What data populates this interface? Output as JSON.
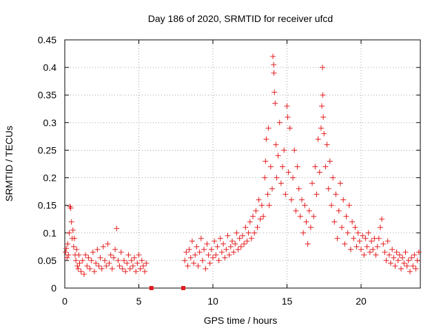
{
  "chart_data": {
    "type": "scatter",
    "title": "Day 186 of 2020, SRMTID for receiver ufcd",
    "xlabel": "GPS time / hours",
    "ylabel": "SRMTID / TECUs",
    "xlim": [
      0,
      24
    ],
    "ylim": [
      0,
      0.45
    ],
    "xticks": [
      0,
      5,
      10,
      15,
      20
    ],
    "xtick_labels": [
      "0",
      "5",
      "10",
      "15",
      "20"
    ],
    "yticks": [
      0,
      0.05,
      0.1,
      0.15,
      0.2,
      0.25,
      0.3,
      0.35,
      0.4,
      0.45
    ],
    "ytick_labels": [
      "0",
      "0.05",
      "0.1",
      "0.15",
      "0.2",
      "0.25",
      "0.3",
      "0.35",
      "0.4",
      "0.45"
    ],
    "grid": true,
    "series": [
      {
        "name": "SRMTID",
        "marker": "plus",
        "color": "#e41a1c",
        "points": [
          [
            0.05,
            0.065
          ],
          [
            0.1,
            0.072
          ],
          [
            0.15,
            0.055
          ],
          [
            0.2,
            0.08
          ],
          [
            0.25,
            0.06
          ],
          [
            0.3,
            0.1
          ],
          [
            0.35,
            0.148
          ],
          [
            0.4,
            0.145
          ],
          [
            0.45,
            0.12
          ],
          [
            0.5,
            0.09
          ],
          [
            0.55,
            0.105
          ],
          [
            0.6,
            0.075
          ],
          [
            0.65,
            0.09
          ],
          [
            0.7,
            0.06
          ],
          [
            0.75,
            0.05
          ],
          [
            0.8,
            0.07
          ],
          [
            0.85,
            0.04
          ],
          [
            0.9,
            0.035
          ],
          [
            0.95,
            0.06
          ],
          [
            1.0,
            0.045
          ],
          [
            1.1,
            0.03
          ],
          [
            1.2,
            0.05
          ],
          [
            1.3,
            0.025
          ],
          [
            1.4,
            0.06
          ],
          [
            1.5,
            0.04
          ],
          [
            1.6,
            0.055
          ],
          [
            1.7,
            0.035
          ],
          [
            1.8,
            0.05
          ],
          [
            1.9,
            0.065
          ],
          [
            2.0,
            0.03
          ],
          [
            2.1,
            0.045
          ],
          [
            2.2,
            0.07
          ],
          [
            2.3,
            0.04
          ],
          [
            2.4,
            0.055
          ],
          [
            2.5,
            0.035
          ],
          [
            2.6,
            0.075
          ],
          [
            2.7,
            0.05
          ],
          [
            2.8,
            0.04
          ],
          [
            2.9,
            0.08
          ],
          [
            3.0,
            0.045
          ],
          [
            3.1,
            0.06
          ],
          [
            3.2,
            0.035
          ],
          [
            3.3,
            0.055
          ],
          [
            3.4,
            0.07
          ],
          [
            3.5,
            0.108
          ],
          [
            3.6,
            0.05
          ],
          [
            3.7,
            0.04
          ],
          [
            3.8,
            0.065
          ],
          [
            3.9,
            0.035
          ],
          [
            4.0,
            0.05
          ],
          [
            4.1,
            0.03
          ],
          [
            4.2,
            0.045
          ],
          [
            4.3,
            0.06
          ],
          [
            4.4,
            0.035
          ],
          [
            4.5,
            0.05
          ],
          [
            4.6,
            0.04
          ],
          [
            4.7,
            0.055
          ],
          [
            4.8,
            0.03
          ],
          [
            4.9,
            0.045
          ],
          [
            5.0,
            0.06
          ],
          [
            5.1,
            0.035
          ],
          [
            5.2,
            0.05
          ],
          [
            5.3,
            0.04
          ],
          [
            5.4,
            0.03
          ],
          [
            5.5,
            0.045
          ],
          [
            8.1,
            0.05
          ],
          [
            8.2,
            0.065
          ],
          [
            8.3,
            0.04
          ],
          [
            8.4,
            0.07
          ],
          [
            8.5,
            0.055
          ],
          [
            8.6,
            0.085
          ],
          [
            8.7,
            0.045
          ],
          [
            8.8,
            0.06
          ],
          [
            8.9,
            0.075
          ],
          [
            9.0,
            0.04
          ],
          [
            9.1,
            0.065
          ],
          [
            9.2,
            0.09
          ],
          [
            9.3,
            0.05
          ],
          [
            9.4,
            0.07
          ],
          [
            9.5,
            0.035
          ],
          [
            9.6,
            0.08
          ],
          [
            9.7,
            0.06
          ],
          [
            9.8,
            0.045
          ],
          [
            9.9,
            0.07
          ],
          [
            10.0,
            0.055
          ],
          [
            10.1,
            0.085
          ],
          [
            10.2,
            0.06
          ],
          [
            10.3,
            0.075
          ],
          [
            10.4,
            0.05
          ],
          [
            10.5,
            0.09
          ],
          [
            10.6,
            0.065
          ],
          [
            10.7,
            0.08
          ],
          [
            10.8,
            0.055
          ],
          [
            10.9,
            0.07
          ],
          [
            11.0,
            0.095
          ],
          [
            11.1,
            0.06
          ],
          [
            11.2,
            0.075
          ],
          [
            11.3,
            0.085
          ],
          [
            11.4,
            0.065
          ],
          [
            11.5,
            0.08
          ],
          [
            11.6,
            0.1
          ],
          [
            11.7,
            0.07
          ],
          [
            11.8,
            0.09
          ],
          [
            11.9,
            0.075
          ],
          [
            12.0,
            0.095
          ],
          [
            12.1,
            0.08
          ],
          [
            12.2,
            0.11
          ],
          [
            12.3,
            0.085
          ],
          [
            12.4,
            0.1
          ],
          [
            12.5,
            0.12
          ],
          [
            12.6,
            0.09
          ],
          [
            12.7,
            0.13
          ],
          [
            12.8,
            0.1
          ],
          [
            12.9,
            0.14
          ],
          [
            13.0,
            0.11
          ],
          [
            13.1,
            0.16
          ],
          [
            13.2,
            0.125
          ],
          [
            13.3,
            0.15
          ],
          [
            13.4,
            0.13
          ],
          [
            13.5,
            0.2
          ],
          [
            13.55,
            0.23
          ],
          [
            13.6,
            0.27
          ],
          [
            13.7,
            0.17
          ],
          [
            13.75,
            0.29
          ],
          [
            13.8,
            0.15
          ],
          [
            13.9,
            0.22
          ],
          [
            14.0,
            0.18
          ],
          [
            14.05,
            0.42
          ],
          [
            14.1,
            0.405
          ],
          [
            14.12,
            0.39
          ],
          [
            14.15,
            0.355
          ],
          [
            14.2,
            0.335
          ],
          [
            14.25,
            0.26
          ],
          [
            14.3,
            0.2
          ],
          [
            14.4,
            0.24
          ],
          [
            14.5,
            0.3
          ],
          [
            14.6,
            0.19
          ],
          [
            14.7,
            0.22
          ],
          [
            14.8,
            0.25
          ],
          [
            14.9,
            0.17
          ],
          [
            15.0,
            0.33
          ],
          [
            15.05,
            0.31
          ],
          [
            15.1,
            0.21
          ],
          [
            15.2,
            0.29
          ],
          [
            15.3,
            0.16
          ],
          [
            15.4,
            0.2
          ],
          [
            15.5,
            0.25
          ],
          [
            15.6,
            0.14
          ],
          [
            15.7,
            0.22
          ],
          [
            15.8,
            0.18
          ],
          [
            15.9,
            0.13
          ],
          [
            16.0,
            0.16
          ],
          [
            16.1,
            0.1
          ],
          [
            16.2,
            0.15
          ],
          [
            16.3,
            0.12
          ],
          [
            16.4,
            0.08
          ],
          [
            16.5,
            0.14
          ],
          [
            16.6,
            0.11
          ],
          [
            16.7,
            0.19
          ],
          [
            16.8,
            0.13
          ],
          [
            16.9,
            0.22
          ],
          [
            17.0,
            0.17
          ],
          [
            17.1,
            0.27
          ],
          [
            17.2,
            0.21
          ],
          [
            17.3,
            0.29
          ],
          [
            17.35,
            0.33
          ],
          [
            17.4,
            0.4
          ],
          [
            17.42,
            0.35
          ],
          [
            17.45,
            0.31
          ],
          [
            17.5,
            0.28
          ],
          [
            17.6,
            0.22
          ],
          [
            17.7,
            0.26
          ],
          [
            17.8,
            0.18
          ],
          [
            17.9,
            0.23
          ],
          [
            18.0,
            0.15
          ],
          [
            18.1,
            0.2
          ],
          [
            18.2,
            0.12
          ],
          [
            18.3,
            0.17
          ],
          [
            18.4,
            0.09
          ],
          [
            18.5,
            0.14
          ],
          [
            18.6,
            0.19
          ],
          [
            18.7,
            0.11
          ],
          [
            18.8,
            0.16
          ],
          [
            18.9,
            0.08
          ],
          [
            19.0,
            0.13
          ],
          [
            19.1,
            0.1
          ],
          [
            19.2,
            0.15
          ],
          [
            19.3,
            0.07
          ],
          [
            19.4,
            0.12
          ],
          [
            19.5,
            0.09
          ],
          [
            19.6,
            0.11
          ],
          [
            19.7,
            0.075
          ],
          [
            19.8,
            0.1
          ],
          [
            19.9,
            0.085
          ],
          [
            20.0,
            0.07
          ],
          [
            20.1,
            0.095
          ],
          [
            20.2,
            0.06
          ],
          [
            20.3,
            0.09
          ],
          [
            20.4,
            0.075
          ],
          [
            20.5,
            0.1
          ],
          [
            20.6,
            0.065
          ],
          [
            20.7,
            0.085
          ],
          [
            20.8,
            0.07
          ],
          [
            20.9,
            0.09
          ],
          [
            21.0,
            0.06
          ],
          [
            21.1,
            0.075
          ],
          [
            21.2,
            0.09
          ],
          [
            21.3,
            0.11
          ],
          [
            21.4,
            0.125
          ],
          [
            21.5,
            0.08
          ],
          [
            21.6,
            0.065
          ],
          [
            21.7,
            0.05
          ],
          [
            21.8,
            0.085
          ],
          [
            21.9,
            0.06
          ],
          [
            22.0,
            0.045
          ],
          [
            22.1,
            0.07
          ],
          [
            22.2,
            0.055
          ],
          [
            22.3,
            0.04
          ],
          [
            22.4,
            0.065
          ],
          [
            22.5,
            0.05
          ],
          [
            22.6,
            0.06
          ],
          [
            22.7,
            0.035
          ],
          [
            22.8,
            0.055
          ],
          [
            22.9,
            0.045
          ],
          [
            23.0,
            0.065
          ],
          [
            23.1,
            0.04
          ],
          [
            23.2,
            0.05
          ],
          [
            23.3,
            0.03
          ],
          [
            23.4,
            0.055
          ],
          [
            23.5,
            0.04
          ],
          [
            23.6,
            0.06
          ],
          [
            23.7,
            0.035
          ],
          [
            23.8,
            0.05
          ],
          [
            23.9,
            0.065
          ]
        ]
      },
      {
        "name": "zero-markers",
        "marker": "square",
        "color": "#e41a1c",
        "points": [
          [
            5.85,
            0
          ],
          [
            8.0,
            0
          ]
        ]
      }
    ]
  }
}
